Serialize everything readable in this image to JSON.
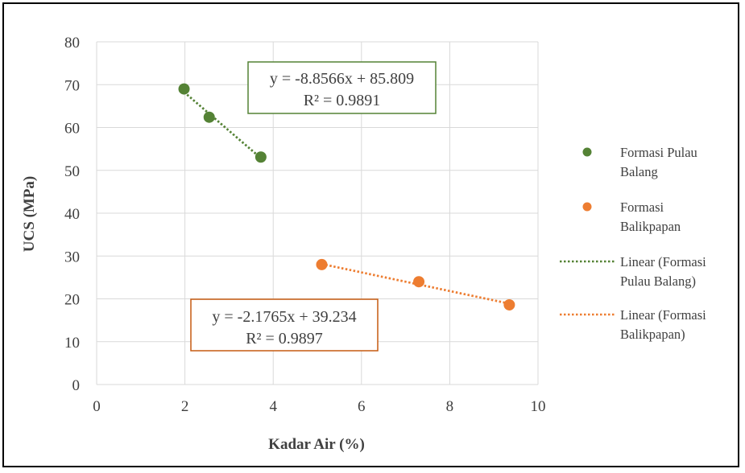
{
  "chart_data": {
    "type": "scatter",
    "xlabel": "Kadar Air (%)",
    "ylabel": "UCS (MPa)",
    "xlim": [
      0,
      10
    ],
    "ylim": [
      0,
      80
    ],
    "x_ticks": [
      0,
      2,
      4,
      6,
      8,
      10
    ],
    "y_ticks": [
      0,
      10,
      20,
      30,
      40,
      50,
      60,
      70,
      80
    ],
    "grid": true,
    "legend_position": "right",
    "series": [
      {
        "name": "Formasi Pulau Balang",
        "color": "#548235",
        "points": [
          {
            "x": 1.98,
            "y": 69.0
          },
          {
            "x": 2.55,
            "y": 62.4
          },
          {
            "x": 3.72,
            "y": 53.1
          }
        ],
        "trendline": {
          "name": "Linear (Formasi Pulau Balang)",
          "slope": -8.8566,
          "intercept": 85.809,
          "x_range": [
            1.98,
            3.72
          ],
          "equation": "y = -8.8566x + 85.809",
          "r2": "R² = 0.9891"
        }
      },
      {
        "name": "Formasi Balikpapan",
        "color": "#ED7D31",
        "points": [
          {
            "x": 5.1,
            "y": 28.0
          },
          {
            "x": 7.3,
            "y": 24.0
          },
          {
            "x": 9.35,
            "y": 18.6
          }
        ],
        "trendline": {
          "name": "Linear (Formasi Balikpapan)",
          "slope": -2.1765,
          "intercept": 39.234,
          "x_range": [
            5.1,
            9.35
          ],
          "equation": "y = -2.1765x + 39.234",
          "r2": "R² = 0.9897"
        }
      }
    ],
    "legend": [
      {
        "label_lines": [
          "Formasi Pulau",
          "Balang"
        ],
        "kind": "marker",
        "color": "#548235"
      },
      {
        "label_lines": [
          "Formasi",
          "Balikpapan"
        ],
        "kind": "marker",
        "color": "#ED7D31"
      },
      {
        "label_lines": [
          "Linear (Formasi",
          "Pulau Balang)"
        ],
        "kind": "line",
        "color": "#548235"
      },
      {
        "label_lines": [
          "Linear (Formasi",
          "Balikpapan)"
        ],
        "kind": "line",
        "color": "#ED7D31"
      }
    ]
  }
}
